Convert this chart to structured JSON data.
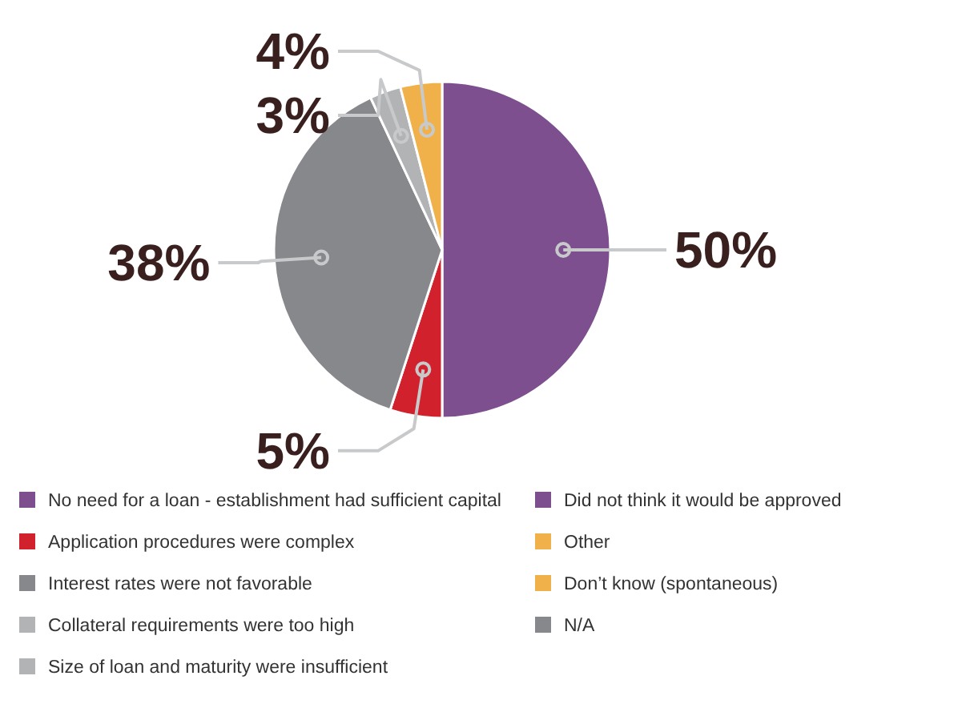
{
  "chart_data": {
    "type": "pie",
    "categories": [
      "No need for a loan - establishment had sufficient capital",
      "Application procedures were complex",
      "Interest rates were not favorable",
      "Collateral requirements were too high",
      "Size of loan and maturity were insufficient",
      "Did not think it would be approved",
      "Other",
      "Don’t know (spontaneous)",
      "N/A"
    ],
    "values": [
      50,
      5,
      38,
      3,
      0,
      0,
      4,
      0,
      0
    ],
    "value_labels": [
      "50%",
      "5%",
      "38%",
      "3%",
      null,
      null,
      "4%",
      null,
      null
    ],
    "colors": [
      "#7d4f8f",
      "#d0212d",
      "#87888b",
      "#b1b3b5",
      "#b1b3b5",
      "#7d4f8f",
      "#f0b04a",
      "#f0b04a",
      "#87888b"
    ],
    "legend": "bottom"
  }
}
